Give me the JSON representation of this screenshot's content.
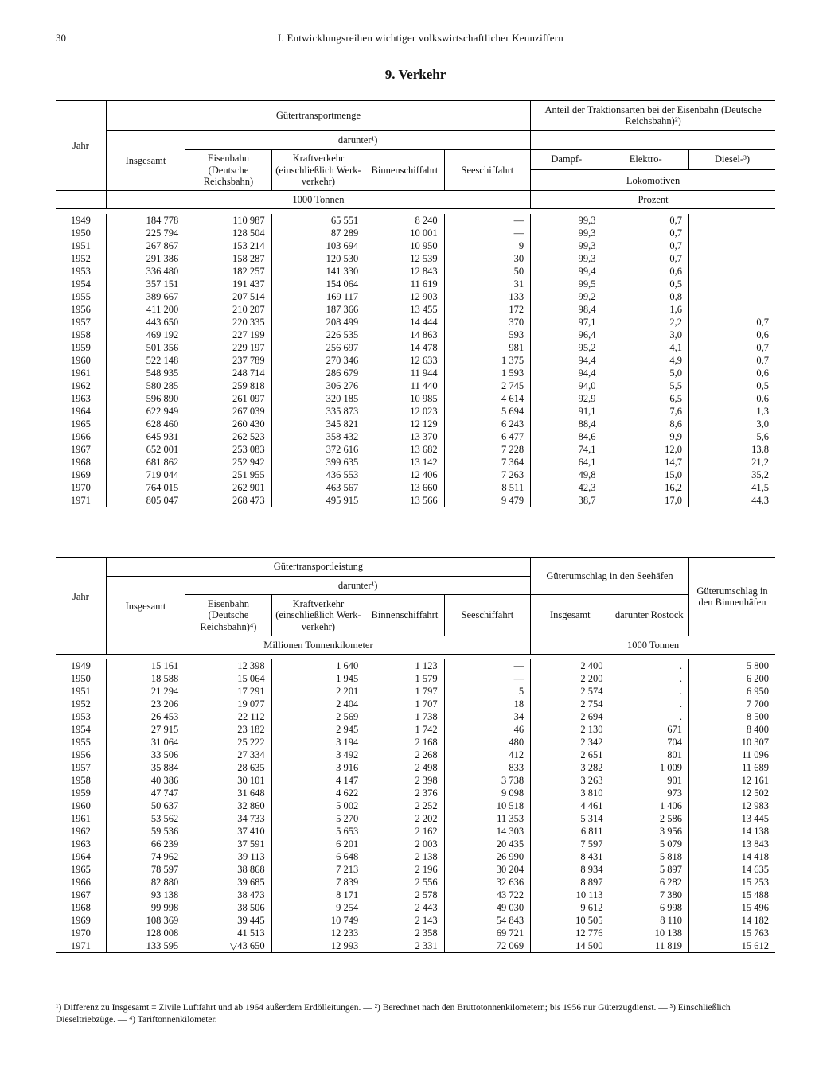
{
  "page_number": "30",
  "chapter": "I. Entwicklungsreihen wichtiger volkswirtschaftlicher Kennziffern",
  "section_title": "9. Verkehr",
  "t1": {
    "h_guetermenge": "Gütertransportmenge",
    "h_traktion": "Anteil der Traktionsarten bei der Eisenbahn (Deutsche Reichsbahn)²)",
    "h_jahr": "Jahr",
    "h_insgesamt": "Insgesamt",
    "h_darunter": "darunter¹)",
    "h_eisenbahn": "Eisenbahn (Deutsche Reichsbahn)",
    "h_kraft": "Kraftverkehr (einschließ­lich Werk­verkehr)",
    "h_binnen": "Binnen­schiffahrt",
    "h_see": "Seeschiffahrt",
    "h_dampf": "Dampf-",
    "h_elektro": "Elektro-",
    "h_diesel": "Diesel-³)",
    "h_lok": "Lokomotiven",
    "u1": "1000 Tonnen",
    "u2": "Prozent",
    "rows": [
      [
        "1949",
        "184 778",
        "110 987",
        "65 551",
        "8 240",
        "—",
        "99,3",
        "0,7",
        ""
      ],
      [
        "1950",
        "225 794",
        "128 504",
        "87 289",
        "10 001",
        "—",
        "99,3",
        "0,7",
        ""
      ],
      [
        "1951",
        "267 867",
        "153 214",
        "103 694",
        "10 950",
        "9",
        "99,3",
        "0,7",
        ""
      ],
      [
        "1952",
        "291 386",
        "158 287",
        "120 530",
        "12 539",
        "30",
        "99,3",
        "0,7",
        ""
      ],
      [
        "1953",
        "336 480",
        "182 257",
        "141 330",
        "12 843",
        "50",
        "99,4",
        "0,6",
        ""
      ],
      [
        "1954",
        "357 151",
        "191 437",
        "154 064",
        "11 619",
        "31",
        "99,5",
        "0,5",
        ""
      ],
      [
        "1955",
        "389 667",
        "207 514",
        "169 117",
        "12 903",
        "133",
        "99,2",
        "0,8",
        ""
      ],
      [
        "1956",
        "411 200",
        "210 207",
        "187 366",
        "13 455",
        "172",
        "98,4",
        "1,6",
        ""
      ],
      [
        "1957",
        "443 650",
        "220 335",
        "208 499",
        "14 444",
        "370",
        "97,1",
        "2,2",
        "0,7"
      ],
      [
        "1958",
        "469 192",
        "227 199",
        "226 535",
        "14 863",
        "593",
        "96,4",
        "3,0",
        "0,6"
      ],
      [
        "1959",
        "501 356",
        "229 197",
        "256 697",
        "14 478",
        "981",
        "95,2",
        "4,1",
        "0,7"
      ],
      [
        "1960",
        "522 148",
        "237 789",
        "270 346",
        "12 633",
        "1 375",
        "94,4",
        "4,9",
        "0,7"
      ],
      [
        "1961",
        "548 935",
        "248 714",
        "286 679",
        "11 944",
        "1 593",
        "94,4",
        "5,0",
        "0,6"
      ],
      [
        "1962",
        "580 285",
        "259 818",
        "306 276",
        "11 440",
        "2 745",
        "94,0",
        "5,5",
        "0,5"
      ],
      [
        "1963",
        "596 890",
        "261 097",
        "320 185",
        "10 985",
        "4 614",
        "92,9",
        "6,5",
        "0,6"
      ],
      [
        "1964",
        "622 949",
        "267 039",
        "335 873",
        "12 023",
        "5 694",
        "91,1",
        "7,6",
        "1,3"
      ],
      [
        "1965",
        "628 460",
        "260 430",
        "345 821",
        "12 129",
        "6 243",
        "88,4",
        "8,6",
        "3,0"
      ],
      [
        "1966",
        "645 931",
        "262 523",
        "358 432",
        "13 370",
        "6 477",
        "84,6",
        "9,9",
        "5,6"
      ],
      [
        "1967",
        "652 001",
        "253 083",
        "372 616",
        "13 682",
        "7 228",
        "74,1",
        "12,0",
        "13,8"
      ],
      [
        "1968",
        "681 862",
        "252 942",
        "399 635",
        "13 142",
        "7 364",
        "64,1",
        "14,7",
        "21,2"
      ],
      [
        "1969",
        "719 044",
        "251 955",
        "436 553",
        "12 406",
        "7 263",
        "49,8",
        "15,0",
        "35,2"
      ],
      [
        "1970",
        "764 015",
        "262 901",
        "463 567",
        "13 660",
        "8 511",
        "42,3",
        "16,2",
        "41,5"
      ],
      [
        "1971",
        "805 047",
        "268 473",
        "495 915",
        "13 566",
        "9 479",
        "38,7",
        "17,0",
        "44,3"
      ]
    ]
  },
  "t2": {
    "h_leistung": "Gütertransportleistung",
    "h_umschlag_see": "Güterumschlag in den Seehäfen",
    "h_umschlag_binnen": "Güter­umschlag in den Binnenhäfen",
    "h_jahr": "Jahr",
    "h_insgesamt": "Insgesamt",
    "h_darunter": "darunter¹)",
    "h_eisenbahn": "Eisenbahn (Deutsche Reichsbahn)⁴)",
    "h_kraft": "Kraftverkehr (einschließ­lich Werk­verkehr)",
    "h_binnen": "Binnen­schiffahrt",
    "h_see": "Seeschiffahrt",
    "h_rostock": "darunter Rostock",
    "u1": "Millionen Tonnenkilometer",
    "u2": "1000 Tonnen",
    "rows": [
      [
        "1949",
        "15 161",
        "12 398",
        "1 640",
        "1 123",
        "—",
        "2 400",
        ".",
        "5 800"
      ],
      [
        "1950",
        "18 588",
        "15 064",
        "1 945",
        "1 579",
        "—",
        "2 200",
        ".",
        "6 200"
      ],
      [
        "1951",
        "21 294",
        "17 291",
        "2 201",
        "1 797",
        "5",
        "2 574",
        ".",
        "6 950"
      ],
      [
        "1952",
        "23 206",
        "19 077",
        "2 404",
        "1 707",
        "18",
        "2 754",
        ".",
        "7 700"
      ],
      [
        "1953",
        "26 453",
        "22 112",
        "2 569",
        "1 738",
        "34",
        "2 694",
        ".",
        "8 500"
      ],
      [
        "1954",
        "27 915",
        "23 182",
        "2 945",
        "1 742",
        "46",
        "2 130",
        "671",
        "8 400"
      ],
      [
        "1955",
        "31 064",
        "25 222",
        "3 194",
        "2 168",
        "480",
        "2 342",
        "704",
        "10 307"
      ],
      [
        "1956",
        "33 506",
        "27 334",
        "3 492",
        "2 268",
        "412",
        "2 651",
        "801",
        "11 096"
      ],
      [
        "1957",
        "35 884",
        "28 635",
        "3 916",
        "2 498",
        "833",
        "3 282",
        "1 009",
        "11 689"
      ],
      [
        "1958",
        "40 386",
        "30 101",
        "4 147",
        "2 398",
        "3 738",
        "3 263",
        "901",
        "12 161"
      ],
      [
        "1959",
        "47 747",
        "31 648",
        "4 622",
        "2 376",
        "9 098",
        "3 810",
        "973",
        "12 502"
      ],
      [
        "1960",
        "50 637",
        "32 860",
        "5 002",
        "2 252",
        "10 518",
        "4 461",
        "1 406",
        "12 983"
      ],
      [
        "1961",
        "53 562",
        "34 733",
        "5 270",
        "2 202",
        "11 353",
        "5 314",
        "2 586",
        "13 445"
      ],
      [
        "1962",
        "59 536",
        "37 410",
        "5 653",
        "2 162",
        "14 303",
        "6 811",
        "3 956",
        "14 138"
      ],
      [
        "1963",
        "66 239",
        "37 591",
        "6 201",
        "2 003",
        "20 435",
        "7 597",
        "5 079",
        "13 843"
      ],
      [
        "1964",
        "74 962",
        "39 113",
        "6 648",
        "2 138",
        "26 990",
        "8 431",
        "5 818",
        "14 418"
      ],
      [
        "1965",
        "78 597",
        "38 868",
        "7 213",
        "2 196",
        "30 204",
        "8 934",
        "5 897",
        "14 635"
      ],
      [
        "1966",
        "82 880",
        "39 685",
        "7 839",
        "2 556",
        "32 636",
        "8 897",
        "6 282",
        "15 253"
      ],
      [
        "1967",
        "93 138",
        "38 473",
        "8 171",
        "2 578",
        "43 722",
        "10 113",
        "7 380",
        "15 488"
      ],
      [
        "1968",
        "99 998",
        "38 506",
        "9 254",
        "2 443",
        "49 030",
        "9 612",
        "6 998",
        "15 496"
      ],
      [
        "1969",
        "108 369",
        "39 445",
        "10 749",
        "2 143",
        "54 843",
        "10 505",
        "8 110",
        "14 182"
      ],
      [
        "1970",
        "128 008",
        "41 513",
        "12 233",
        "2 358",
        "69 721",
        "12 776",
        "10 138",
        "15 763"
      ],
      [
        "1971",
        "133 595",
        "▽43 650",
        "12 993",
        "2 331",
        "72 069",
        "14 500",
        "11 819",
        "15 612"
      ]
    ]
  },
  "footnotes": "¹) Differenz zu Insgesamt = Zivile Luftfahrt und ab 1964 außerdem Erdölleitungen. — ²) Berechnet nach den Bruttotonnenkilometern; bis 1956 nur Güterzugdienst. — ³) Einschließlich Dieseltriebzüge. — ⁴) Tariftonnenkilometer."
}
